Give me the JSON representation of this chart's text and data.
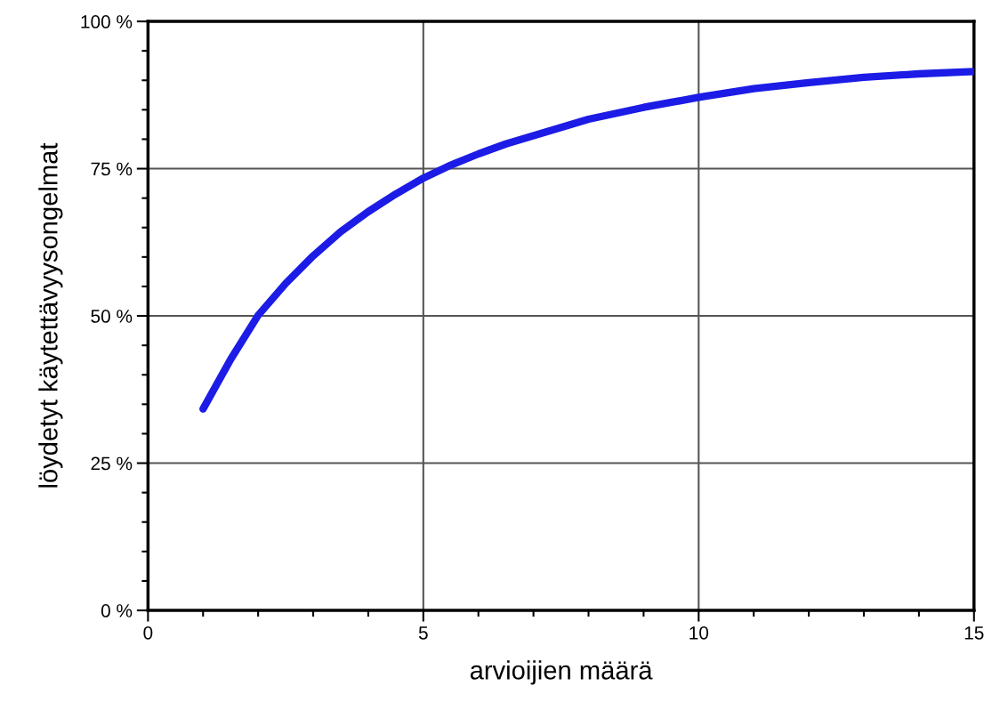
{
  "chart_data": {
    "type": "line",
    "xlabel": "arvioijien määrä",
    "ylabel": "löydetyt käytettävyysongelmat",
    "x": [
      1,
      1.5,
      2,
      2.5,
      3,
      3.5,
      4,
      4.5,
      5,
      5.5,
      6,
      6.5,
      7,
      7.5,
      8,
      9,
      10,
      11,
      12,
      13,
      14,
      15
    ],
    "series": [
      {
        "color": "#1c1ce6",
        "values": [
          34.2,
          42.6,
          50.1,
          55.5,
          60.2,
          64.3,
          67.7,
          70.7,
          73.4,
          75.6,
          77.5,
          79.2,
          80.6,
          82.0,
          83.4,
          85.4,
          87.1,
          88.6,
          89.6,
          90.5,
          91.1,
          91.5
        ]
      }
    ],
    "xlim": [
      0,
      15
    ],
    "ylim": [
      0,
      100
    ],
    "xticks": [
      0,
      {
        "value": 1,
        "label": null
      },
      {
        "value": 2,
        "label": null
      },
      {
        "value": 3,
        "label": null
      },
      {
        "value": 4,
        "label": null
      },
      5,
      {
        "value": 6,
        "label": null
      },
      {
        "value": 7,
        "label": null
      },
      {
        "value": 8,
        "label": null
      },
      {
        "value": 9,
        "label": null
      },
      10,
      {
        "value": 11,
        "label": null
      },
      {
        "value": 12,
        "label": null
      },
      {
        "value": 13,
        "label": null
      },
      {
        "value": 14,
        "label": null
      },
      15
    ],
    "yticks": [
      {
        "value": 0,
        "label": "0 %"
      },
      {
        "value": 5,
        "label": null
      },
      {
        "value": 10,
        "label": null
      },
      {
        "value": 15,
        "label": null
      },
      {
        "value": 20,
        "label": null
      },
      {
        "value": 25,
        "label": "25 %"
      },
      {
        "value": 30,
        "label": null
      },
      {
        "value": 35,
        "label": null
      },
      {
        "value": 40,
        "label": null
      },
      {
        "value": 45,
        "label": null
      },
      {
        "value": 50,
        "label": "50 %"
      },
      {
        "value": 55,
        "label": null
      },
      {
        "value": 60,
        "label": null
      },
      {
        "value": 65,
        "label": null
      },
      {
        "value": 70,
        "label": null
      },
      {
        "value": 75,
        "label": "75 %"
      },
      {
        "value": 80,
        "label": null
      },
      {
        "value": 85,
        "label": null
      },
      {
        "value": 90,
        "label": null
      },
      {
        "value": 95,
        "label": null
      },
      {
        "value": 100,
        "label": "100 %"
      }
    ],
    "grid": true,
    "line_style": "solid",
    "marker": "none"
  }
}
